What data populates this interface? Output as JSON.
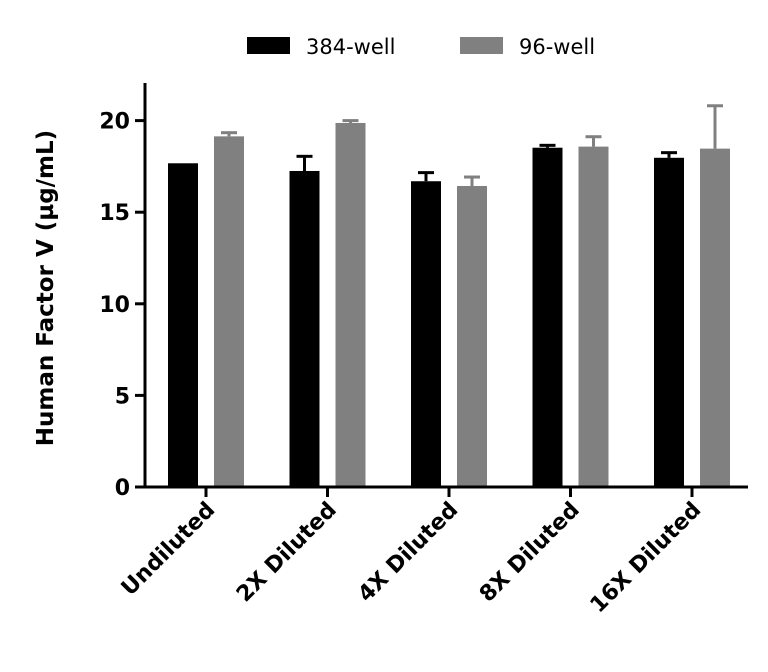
{
  "chart_data": {
    "type": "bar",
    "title": "",
    "xlabel": "",
    "ylabel": "Human Factor V (µg/mL)",
    "ylim": [
      0,
      22
    ],
    "yticks": [
      0,
      5,
      10,
      15,
      20
    ],
    "grid": false,
    "legend_placement": "top",
    "categories": [
      "Undiluted",
      "2X Diluted",
      "4X Diluted",
      "8X Diluted",
      "16X Diluted"
    ],
    "series": [
      {
        "name": "384-well",
        "color": "#000000",
        "values": [
          17.67,
          17.25,
          16.69,
          18.52,
          17.97
        ],
        "errors": [
          0,
          0.8,
          0.47,
          0.13,
          0.28
        ]
      },
      {
        "name": "96-well",
        "color": "#808080",
        "values": [
          19.14,
          19.87,
          16.43,
          18.58,
          18.47
        ],
        "errors": [
          0.2,
          0.13,
          0.49,
          0.54,
          2.34
        ]
      }
    ]
  }
}
